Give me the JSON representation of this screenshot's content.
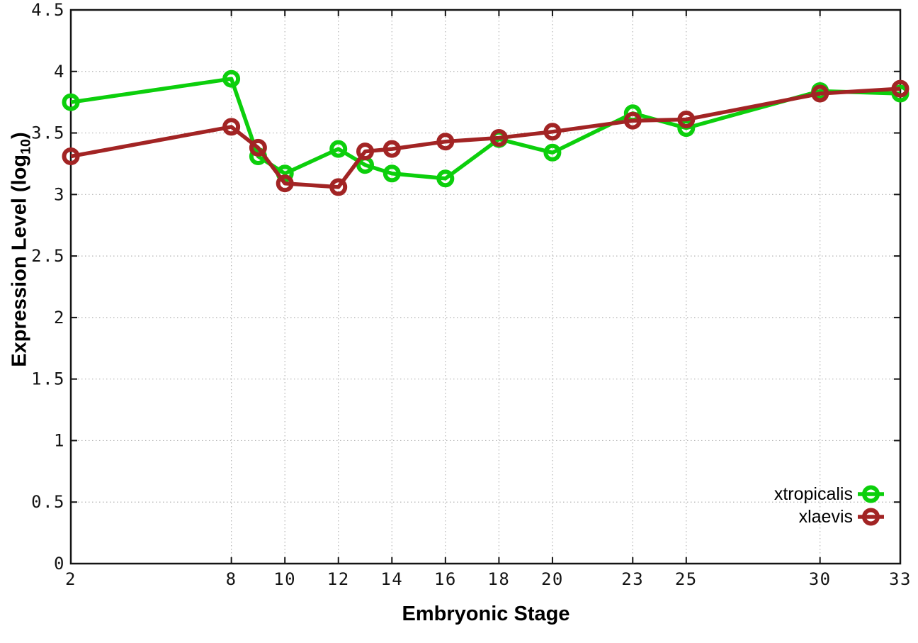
{
  "chart_data": {
    "type": "line",
    "title": "",
    "xlabel": "Embryonic Stage",
    "ylabel": {
      "prefix": "Expression Level (log",
      "sub": "10",
      "suffix": ")"
    },
    "x": [
      2,
      8,
      9,
      10,
      12,
      13,
      14,
      16,
      18,
      20,
      23,
      25,
      30,
      33
    ],
    "series": [
      {
        "name": "xtropicalis",
        "color": "#0ccf0c",
        "marker": "open-circle",
        "values": [
          3.75,
          3.94,
          3.31,
          3.17,
          3.37,
          3.24,
          3.17,
          3.13,
          3.45,
          3.34,
          3.66,
          3.54,
          3.84,
          3.82
        ]
      },
      {
        "name": "xlaevis",
        "color": "#a22424",
        "marker": "open-circle",
        "values": [
          3.31,
          3.55,
          3.38,
          3.09,
          3.06,
          3.35,
          3.37,
          3.43,
          3.46,
          3.51,
          3.6,
          3.61,
          3.82,
          3.86
        ]
      }
    ],
    "xlim": [
      2,
      33
    ],
    "ylim": [
      0,
      4.5
    ],
    "xticks": [
      "2",
      "8",
      "10",
      "12",
      "14",
      "16",
      "18",
      "20",
      "23",
      "25",
      "30",
      "33"
    ],
    "yticks": [
      "0",
      "0.5",
      "1",
      "1.5",
      "2",
      "2.5",
      "3",
      "3.5",
      "4",
      "4.5"
    ],
    "grid": true,
    "grid_color": "#b3b3b3",
    "border_color": "#141414",
    "legend_position": "bottom-right"
  }
}
